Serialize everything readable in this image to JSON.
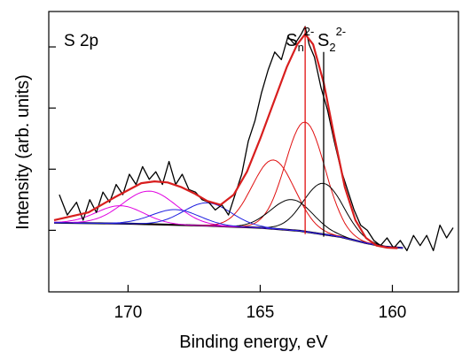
{
  "chart_data": {
    "type": "line",
    "panel_label": "S 2p",
    "xlabel": "Binding energy, eV",
    "ylabel": "Intensity (arb. units)",
    "x_reversed": true,
    "xlim": [
      173.0,
      157.5
    ],
    "ylim": [
      0,
      100
    ],
    "x_ticks": [
      170,
      165,
      160
    ],
    "x_tick_labels": [
      "170",
      "165",
      "160"
    ],
    "y_ticks_unlabeled": [
      20,
      44,
      68,
      92
    ],
    "annotations": [
      {
        "text": "S",
        "sub": "n",
        "sup": "2-",
        "x": 163.8
      },
      {
        "text": "S",
        "sub": "2",
        "sup": "2-",
        "x": 162.6
      }
    ],
    "series": [
      {
        "color": "#000000",
        "kind": "background",
        "x": [
          172.8,
          170.0,
          167.0,
          165.0,
          163.5,
          162.0,
          161.0,
          160.3,
          159.6
        ],
        "y": [
          23.0,
          22.6,
          21.8,
          21.0,
          19.8,
          17.5,
          15.0,
          13.6,
          13.1
        ]
      },
      {
        "color": "#000000",
        "kind": "raw",
        "x": [
          172.6,
          172.3,
          171.95,
          171.7,
          171.45,
          171.2,
          170.95,
          170.7,
          170.45,
          170.2,
          169.95,
          169.7,
          169.45,
          169.2,
          168.95,
          168.7,
          168.45,
          168.2,
          167.95,
          167.7,
          167.45,
          167.2,
          166.95,
          166.7,
          166.45,
          166.2,
          165.95,
          165.7,
          165.45,
          165.2,
          164.95,
          164.7,
          164.45,
          164.2,
          163.95,
          163.7,
          163.45,
          163.3,
          163.15,
          162.95,
          162.7,
          162.45,
          162.2,
          161.95,
          161.7,
          161.45,
          161.2,
          160.95,
          160.7,
          160.45,
          160.2,
          159.95,
          159.7,
          159.45,
          159.2,
          158.95,
          158.7,
          158.45,
          158.2,
          157.95,
          157.7
        ],
        "y": [
          34,
          26,
          31,
          24,
          32,
          27,
          35,
          31,
          38,
          34,
          42,
          38,
          45,
          40,
          43,
          38,
          47,
          38,
          42,
          36,
          35,
          32,
          31,
          28,
          30,
          26,
          34,
          42,
          55,
          63,
          74,
          83,
          90,
          87,
          96,
          93,
          97,
          100,
          93,
          88,
          76,
          67,
          55,
          44,
          36,
          28,
          22,
          20,
          16,
          14,
          17,
          13,
          16,
          12,
          18,
          14,
          18,
          12,
          22,
          17,
          21
        ]
      },
      {
        "color": "#d81e1e",
        "kind": "envelope",
        "x": [
          172.8,
          171.5,
          170.5,
          169.5,
          169.0,
          168.5,
          168.0,
          167.5,
          167.0,
          166.5,
          166.0,
          165.5,
          165.0,
          164.5,
          164.0,
          163.6,
          163.3,
          163.0,
          162.6,
          162.2,
          161.8,
          161.4,
          161.0,
          160.6,
          160.2,
          159.8
        ],
        "y": [
          24.0,
          27.0,
          33.0,
          38.5,
          39.2,
          38.8,
          37.0,
          34.5,
          31.5,
          30.0,
          34.0,
          43.0,
          56.0,
          70.0,
          84.0,
          93.0,
          97.0,
          93.0,
          78.0,
          57.0,
          37.0,
          24.0,
          17.0,
          14.0,
          13.2,
          13.0
        ]
      },
      {
        "color": "#e01010",
        "kind": "component",
        "center": 163.3,
        "height": 43,
        "width": 0.75
      },
      {
        "color": "#e01010",
        "kind": "component",
        "center": 164.5,
        "height": 27,
        "width": 0.8
      },
      {
        "color": "#000000",
        "kind": "component",
        "center": 162.6,
        "height": 20,
        "width": 0.75
      },
      {
        "color": "#000000",
        "kind": "component",
        "center": 163.8,
        "height": 12,
        "width": 0.8
      },
      {
        "color": "#e000e0",
        "kind": "component",
        "center": 169.2,
        "height": 13,
        "width": 1.0
      },
      {
        "color": "#e000e0",
        "kind": "component",
        "center": 170.3,
        "height": 7,
        "width": 0.9
      },
      {
        "color": "#2020e0",
        "kind": "component",
        "center": 167.0,
        "height": 9,
        "width": 0.9
      },
      {
        "color": "#2020e0",
        "kind": "component",
        "center": 168.2,
        "height": 6,
        "width": 0.9
      }
    ],
    "reference_lines": [
      {
        "color": "#e01010",
        "x": 163.3,
        "y_from": 18.5,
        "y_to": 100
      },
      {
        "color": "#000000",
        "x": 162.6,
        "y_from": 17.5,
        "y_to": 90
      }
    ]
  }
}
